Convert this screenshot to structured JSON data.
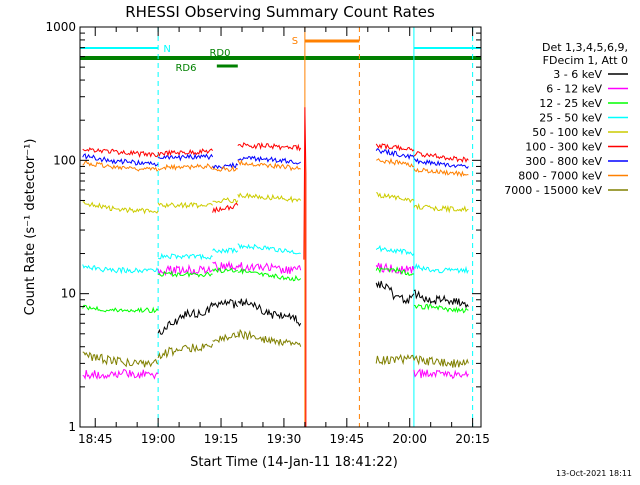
{
  "chart_data": {
    "type": "line",
    "title": "RHESSI Observing Summary Count Rates",
    "xlabel": "Start Time (14-Jan-11 18:41:22)",
    "ylabel": "Count Rate (s⁻¹ detector⁻¹)",
    "ylog": true,
    "ylim": [
      1,
      1000
    ],
    "xlim": [
      "18:41:22",
      "20:17:00"
    ],
    "x_ticks": [
      "18:45",
      "19:00",
      "19:15",
      "19:30",
      "19:45",
      "20:00",
      "20:15"
    ],
    "y_ticks": [
      "1",
      "10",
      "100",
      "1000"
    ],
    "legend_header": [
      "Det 1,3,4,5,6,9,",
      "FDecim 1, Att 0"
    ],
    "series": [
      {
        "name": "3 - 6 keV",
        "color": "#000000",
        "segments": [
          {
            "x": [
              "19:00",
              "19:03",
              "19:07",
              "19:10",
              "19:13"
            ],
            "y": [
              5,
              6,
              7,
              7,
              8
            ]
          },
          {
            "x": [
              "19:13",
              "19:16",
              "19:19"
            ],
            "y": [
              8,
              9,
              8
            ]
          },
          {
            "x": [
              "19:19",
              "19:23",
              "19:27",
              "19:31",
              "19:34"
            ],
            "y": [
              9,
              8,
              7,
              7,
              6
            ]
          },
          {
            "x": [
              "19:52",
              "19:55",
              "19:57",
              "20:00",
              "20:01"
            ],
            "y": [
              12,
              11,
              9,
              9,
              10
            ]
          },
          {
            "x": [
              "20:01",
              "20:05",
              "20:10",
              "20:14"
            ],
            "y": [
              10,
              9,
              9,
              8
            ]
          }
        ]
      },
      {
        "name": "6 - 12 keV",
        "color": "#ff00ff",
        "segments": [
          {
            "x": [
              "18:42",
              "18:48",
              "18:55",
              "19:00"
            ],
            "y": [
              2.5,
              2.5,
              2.5,
              2.5
            ]
          },
          {
            "x": [
              "19:00",
              "19:05",
              "19:10",
              "19:13"
            ],
            "y": [
              15,
              15,
              15,
              15
            ]
          },
          {
            "x": [
              "19:13",
              "19:16",
              "19:19"
            ],
            "y": [
              16,
              16,
              16
            ]
          },
          {
            "x": [
              "19:19",
              "19:25",
              "19:30",
              "19:34"
            ],
            "y": [
              16,
              16,
              15,
              15
            ]
          },
          {
            "x": [
              "19:52",
              "19:57",
              "20:01"
            ],
            "y": [
              16,
              15,
              15
            ]
          },
          {
            "x": [
              "20:01",
              "20:05",
              "20:10",
              "20:14"
            ],
            "y": [
              2.5,
              2.5,
              2.5,
              2.5
            ]
          }
        ]
      },
      {
        "name": "12 - 25 keV",
        "color": "#00ff00",
        "segments": [
          {
            "x": [
              "18:42",
              "18:48",
              "18:55",
              "19:00"
            ],
            "y": [
              8,
              7.5,
              7.5,
              7.5
            ]
          },
          {
            "x": [
              "19:00",
              "19:05",
              "19:10",
              "19:13"
            ],
            "y": [
              14,
              14,
              14,
              14
            ]
          },
          {
            "x": [
              "19:13",
              "19:16",
              "19:19"
            ],
            "y": [
              15,
              15,
              15
            ]
          },
          {
            "x": [
              "19:19",
              "19:25",
              "19:30",
              "19:34"
            ],
            "y": [
              15,
              14,
              13,
              13
            ]
          },
          {
            "x": [
              "19:52",
              "19:57",
              "20:01"
            ],
            "y": [
              15,
              15,
              14
            ]
          },
          {
            "x": [
              "20:01",
              "20:05",
              "20:10",
              "20:14"
            ],
            "y": [
              8,
              8,
              7.5,
              7.5
            ]
          }
        ]
      },
      {
        "name": "25 - 50 keV",
        "color": "#00ffff",
        "segments": [
          {
            "x": [
              "18:42",
              "18:48",
              "18:55",
              "19:00"
            ],
            "y": [
              16,
              15,
              15,
              15
            ]
          },
          {
            "x": [
              "19:00",
              "19:05",
              "19:10",
              "19:13"
            ],
            "y": [
              19,
              19,
              19,
              19
            ]
          },
          {
            "x": [
              "19:13",
              "19:16",
              "19:19"
            ],
            "y": [
              21,
              21,
              21
            ]
          },
          {
            "x": [
              "19:19",
              "19:25",
              "19:30",
              "19:34"
            ],
            "y": [
              23,
              22,
              21,
              20
            ]
          },
          {
            "x": [
              "19:52",
              "19:57",
              "20:01"
            ],
            "y": [
              22,
              21,
              20
            ]
          },
          {
            "x": [
              "20:01",
              "20:05",
              "20:10",
              "20:14"
            ],
            "y": [
              16,
              15,
              15,
              15
            ]
          }
        ]
      },
      {
        "name": "50 - 100 keV",
        "color": "#cccc00",
        "segments": [
          {
            "x": [
              "18:42",
              "18:48",
              "18:55",
              "19:00"
            ],
            "y": [
              48,
              44,
              42,
              42
            ]
          },
          {
            "x": [
              "19:00",
              "19:05",
              "19:10",
              "19:13"
            ],
            "y": [
              46,
              46,
              46,
              46
            ]
          },
          {
            "x": [
              "19:13",
              "19:16",
              "19:19"
            ],
            "y": [
              50,
              50,
              50
            ]
          },
          {
            "x": [
              "19:19",
              "19:25",
              "19:30",
              "19:34"
            ],
            "y": [
              55,
              53,
              52,
              50
            ]
          },
          {
            "x": [
              "19:52",
              "19:57",
              "20:01"
            ],
            "y": [
              55,
              53,
              50
            ]
          },
          {
            "x": [
              "20:01",
              "20:05",
              "20:10",
              "20:14"
            ],
            "y": [
              45,
              44,
              43,
              43
            ]
          }
        ]
      },
      {
        "name": "100 - 300 keV",
        "color": "#ff0000",
        "segments": [
          {
            "x": [
              "18:42",
              "18:48",
              "18:55",
              "19:00"
            ],
            "y": [
              122,
              117,
              112,
              110
            ]
          },
          {
            "x": [
              "19:00",
              "19:05",
              "19:10",
              "19:13"
            ],
            "y": [
              113,
              114,
              116,
              118
            ]
          },
          {
            "x": [
              "19:13",
              "19:16",
              "19:19"
            ],
            "y": [
              42,
              44,
              46
            ]
          },
          {
            "x": [
              "19:19",
              "19:25",
              "19:30",
              "19:34"
            ],
            "y": [
              130,
              128,
              126,
              124
            ]
          },
          {
            "x": [
              "19:52",
              "19:57",
              "20:01"
            ],
            "y": [
              130,
              124,
              120
            ]
          },
          {
            "x": [
              "20:01",
              "20:05",
              "20:10",
              "20:14"
            ],
            "y": [
              112,
              108,
              104,
              100
            ]
          }
        ]
      },
      {
        "name": "300 - 800 keV",
        "color": "#0000ff",
        "segments": [
          {
            "x": [
              "18:42",
              "18:48",
              "18:55",
              "19:00"
            ],
            "y": [
              108,
              100,
              96,
              94
            ]
          },
          {
            "x": [
              "19:00",
              "19:05",
              "19:10",
              "19:13"
            ],
            "y": [
              104,
              105,
              106,
              106
            ]
          },
          {
            "x": [
              "19:13",
              "19:16",
              "19:19"
            ],
            "y": [
              88,
              90,
              92
            ]
          },
          {
            "x": [
              "19:19",
              "19:25",
              "19:30",
              "19:34"
            ],
            "y": [
              104,
              102,
              100,
              97
            ]
          },
          {
            "x": [
              "19:52",
              "19:57",
              "20:01"
            ],
            "y": [
              118,
              112,
              105
            ]
          },
          {
            "x": [
              "20:01",
              "20:05",
              "20:10",
              "20:14"
            ],
            "y": [
              100,
              96,
              92,
              90
            ]
          }
        ]
      },
      {
        "name": "800 - 7000 keV",
        "color": "#ff8000",
        "segments": [
          {
            "x": [
              "18:42",
              "18:48",
              "18:55",
              "19:00"
            ],
            "y": [
              96,
              90,
              86,
              84
            ]
          },
          {
            "x": [
              "19:00",
              "19:05",
              "19:10",
              "19:13"
            ],
            "y": [
              88,
              89,
              90,
              90
            ]
          },
          {
            "x": [
              "19:13",
              "19:16",
              "19:19"
            ],
            "y": [
              84,
              86,
              86
            ]
          },
          {
            "x": [
              "19:19",
              "19:25",
              "19:30",
              "19:34"
            ],
            "y": [
              96,
              92,
              89,
              86
            ]
          },
          {
            "x": [
              "19:52",
              "19:57",
              "20:01"
            ],
            "y": [
              102,
              96,
              90
            ]
          },
          {
            "x": [
              "20:01",
              "20:05",
              "20:10",
              "20:14"
            ],
            "y": [
              86,
              82,
              80,
              78
            ]
          }
        ]
      },
      {
        "name": "7000 - 15000 keV",
        "color": "#808000",
        "segments": [
          {
            "x": [
              "18:42",
              "18:48",
              "18:55",
              "19:00"
            ],
            "y": [
              3.5,
              3.2,
              3,
              3
            ]
          },
          {
            "x": [
              "19:00",
              "19:05",
              "19:10",
              "19:13"
            ],
            "y": [
              3.5,
              3.8,
              4,
              4.2
            ]
          },
          {
            "x": [
              "19:13",
              "19:16",
              "19:19"
            ],
            "y": [
              4.5,
              4.6,
              4.8
            ]
          },
          {
            "x": [
              "19:19",
              "19:25",
              "19:30",
              "19:34"
            ],
            "y": [
              5,
              4.6,
              4.3,
              4
            ]
          },
          {
            "x": [
              "19:52",
              "19:57",
              "20:01"
            ],
            "y": [
              3.2,
              3.2,
              3.2
            ]
          },
          {
            "x": [
              "20:01",
              "20:05",
              "20:10",
              "20:14"
            ],
            "y": [
              3.2,
              3.1,
              3,
              3
            ]
          }
        ]
      }
    ],
    "flags": [
      {
        "label": "N",
        "color": "#00ffff",
        "segments": [
          [
            "18:41:22",
            "19:00"
          ],
          [
            "20:01",
            "20:17"
          ]
        ]
      },
      {
        "label": "S",
        "color": "#ff8000",
        "segments": [
          [
            "19:35",
            "19:48"
          ]
        ]
      },
      {
        "label": "RD0",
        "color": "#008000",
        "segments": [
          [
            "18:41:22",
            "20:17"
          ]
        ]
      },
      {
        "label": "RD6",
        "color": "#008000",
        "segments": [
          [
            "19:14",
            "19:19"
          ]
        ]
      }
    ],
    "vertical_markers": [
      {
        "time": "19:00",
        "color": "#00ffff",
        "style": "dashed"
      },
      {
        "time": "20:01",
        "color": "#00ffff",
        "style": "solid"
      },
      {
        "time": "20:15",
        "color": "#00ffff",
        "style": "dashed"
      },
      {
        "time": "19:35",
        "color": "#ff8000",
        "style": "solid"
      },
      {
        "time": "19:48",
        "color": "#ff8000",
        "style": "dashed"
      }
    ],
    "flare_spike": {
      "time": "19:35",
      "peak": 250
    },
    "footer_timestamp": "13-Oct-2021 18:11"
  }
}
